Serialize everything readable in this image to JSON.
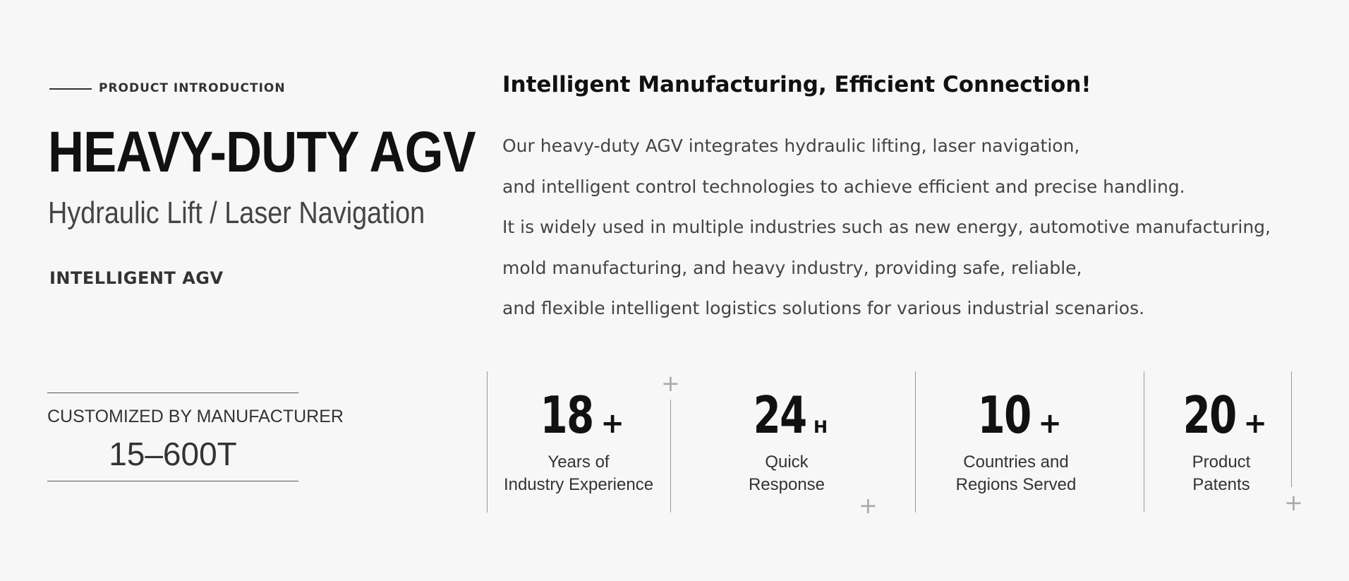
{
  "intro": {
    "eyebrow": "PRODUCT INTRODUCTION",
    "title": "HEAVY-DUTY AGV",
    "subtitle": "Hydraulic Lift / Laser Navigation",
    "tagline": "INTELLIGENT AGV",
    "custom_label": "CUSTOMIZED BY MANUFACTURER",
    "custom_value": "15–600T"
  },
  "content": {
    "headline": "Intelligent Manufacturing, Efficient Connection!",
    "body": [
      "Our heavy-duty AGV integrates hydraulic lifting, laser navigation,",
      "and intelligent control technologies to achieve efficient and precise handling.",
      "It is widely used in multiple industries such as new energy, automotive manufacturing,",
      "mold manufacturing, and heavy industry, providing safe, reliable,",
      "and flexible intelligent logistics solutions for various industrial scenarios."
    ]
  },
  "stats": [
    {
      "value": "18",
      "suffix": "+",
      "label1": "Years of",
      "label2": "Industry Experience"
    },
    {
      "value": "24",
      "suffix": "H",
      "label1": "Quick",
      "label2": "Response"
    },
    {
      "value": "10",
      "suffix": "+",
      "label1": "Countries and",
      "label2": "Regions Served"
    },
    {
      "value": "20",
      "suffix": "+",
      "label1": "Product",
      "label2": "Patents"
    }
  ],
  "decor": {
    "plus": "+"
  }
}
